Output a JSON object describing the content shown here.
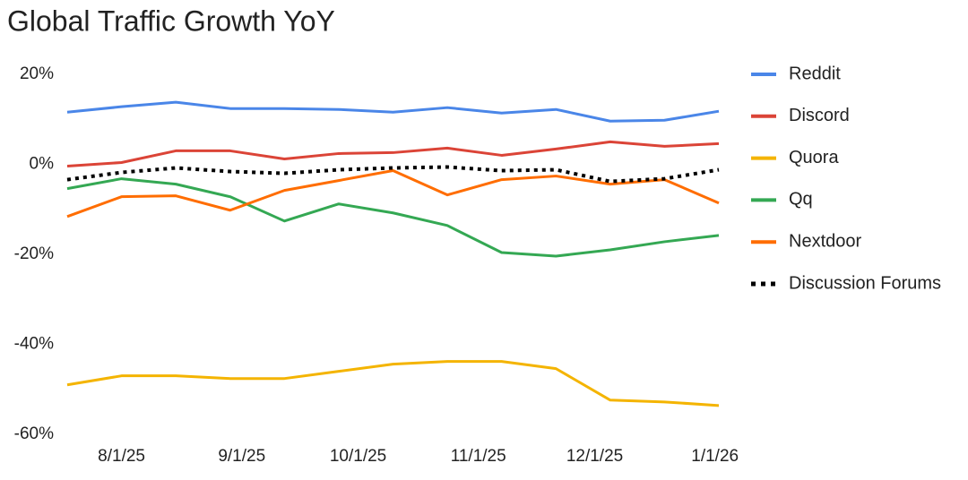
{
  "chart_data": {
    "type": "line",
    "title": "Global Traffic Growth YoY",
    "x": [
      "2025-07-18",
      "2025-08-01",
      "2025-08-15",
      "2025-08-29",
      "2025-09-12",
      "2025-09-26",
      "2025-10-10",
      "2025-10-24",
      "2025-11-07",
      "2025-11-21",
      "2025-12-05",
      "2025-12-19",
      "2026-01-02"
    ],
    "xlim": [
      "2025-07-18",
      "2026-01-02"
    ],
    "xticks": [
      {
        "value": "2025-08-01",
        "label": "8/1/25"
      },
      {
        "value": "2025-09-01",
        "label": "9/1/25"
      },
      {
        "value": "2025-10-01",
        "label": "10/1/25"
      },
      {
        "value": "2025-11-01",
        "label": "11/1/25"
      },
      {
        "value": "2025-12-01",
        "label": "12/1/25"
      },
      {
        "value": "2026-01-01",
        "label": "1/1/26"
      }
    ],
    "ylim": [
      -60,
      20
    ],
    "yticks": [
      {
        "value": -60,
        "label": "-60%"
      },
      {
        "value": -40,
        "label": "-40%"
      },
      {
        "value": -20,
        "label": "-20%"
      },
      {
        "value": 0,
        "label": "0%"
      },
      {
        "value": 20,
        "label": "20%"
      }
    ],
    "grid": false,
    "legend": "right",
    "series": [
      {
        "name": "Reddit",
        "color": "#4a86e8",
        "values": [
          11.6,
          12.8,
          13.8,
          12.4,
          12.4,
          12.2,
          11.6,
          12.6,
          11.4,
          12.2,
          9.6,
          9.8,
          11.8
        ]
      },
      {
        "name": "Discord",
        "color": "#db4437",
        "values": [
          -0.4,
          0.4,
          3,
          3,
          1.2,
          2.4,
          2.6,
          3.6,
          2,
          3.4,
          5,
          4,
          4.6
        ]
      },
      {
        "name": "Quora",
        "color": "#f4b400",
        "values": [
          -49,
          -47,
          -47,
          -47.6,
          -47.6,
          -46,
          -44.4,
          -43.8,
          -43.8,
          -45.4,
          -52.4,
          -52.8,
          -53.6
        ]
      },
      {
        "name": "Qq",
        "color": "#34a853",
        "values": [
          -5.4,
          -3.2,
          -4.4,
          -7.2,
          -12.6,
          -8.8,
          -10.8,
          -13.6,
          -19.6,
          -20.4,
          -19,
          -17.2,
          -15.8
        ]
      },
      {
        "name": "Nextdoor",
        "color": "#ff6d00",
        "values": [
          -11.6,
          -7.2,
          -7,
          -10.2,
          -5.8,
          -3.6,
          -1.4,
          -6.8,
          -3.4,
          -2.6,
          -4.4,
          -3.4,
          -8.6
        ]
      },
      {
        "name": "Discussion Forums",
        "color": "#000000",
        "dash": "dotted",
        "values": [
          -3.4,
          -1.8,
          -0.8,
          -1.6,
          -2,
          -1.2,
          -0.8,
          -0.6,
          -1.4,
          -1.2,
          -3.8,
          -3.2,
          -1.2
        ]
      }
    ]
  }
}
